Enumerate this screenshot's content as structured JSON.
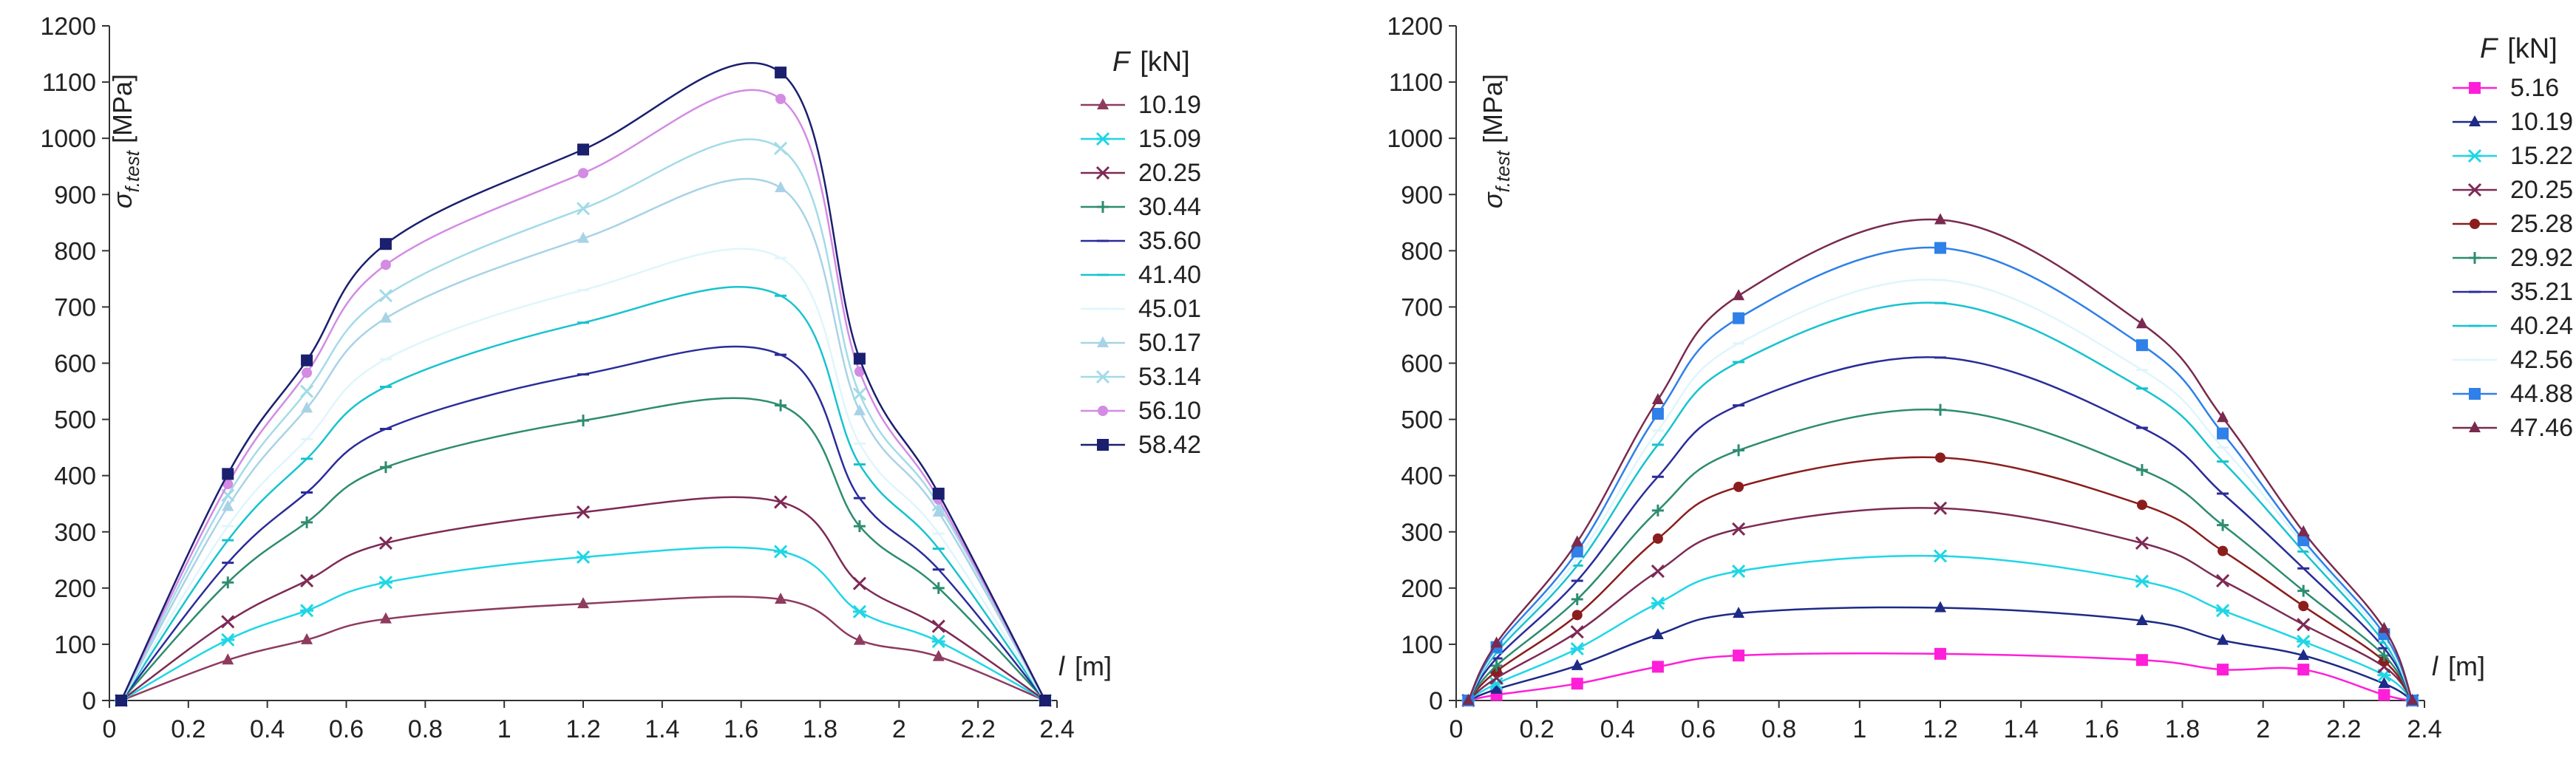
{
  "chart_data": [
    {
      "type": "line",
      "xlabel": "l",
      "xunit": "[m]",
      "ylabel_main": "σ",
      "ylabel_sub": "f.test",
      "yunit": "[MPa]",
      "legend_title": "F",
      "legend_unit": "[kN]",
      "xlim": [
        0,
        2.4
      ],
      "ylim": [
        0,
        1200
      ],
      "xticks": [
        "0",
        "0.2",
        "0.4",
        "0.6",
        "0.8",
        "1",
        "1.2",
        "1.4",
        "1.6",
        "1.8",
        "2",
        "2.2",
        "2.4"
      ],
      "yticks": [
        "0",
        "100",
        "200",
        "300",
        "400",
        "500",
        "600",
        "700",
        "800",
        "900",
        "1000",
        "1100",
        "1200"
      ],
      "x": [
        0.03,
        0.3,
        0.5,
        0.7,
        1.2,
        1.7,
        1.9,
        2.1,
        2.37
      ],
      "series": [
        {
          "name": "10.19",
          "color": "#8e3b5e",
          "marker": "triangle",
          "values": [
            0,
            72,
            108,
            145,
            172,
            180,
            107,
            78,
            0
          ]
        },
        {
          "name": "15.09",
          "color": "#1fd6e6",
          "marker": "asterisk",
          "values": [
            0,
            108,
            160,
            210,
            255,
            265,
            158,
            105,
            0
          ]
        },
        {
          "name": "20.25",
          "color": "#7d2a55",
          "marker": "x",
          "values": [
            0,
            140,
            213,
            280,
            335,
            353,
            208,
            132,
            0
          ]
        },
        {
          "name": "30.44",
          "color": "#2e8c70",
          "marker": "plus",
          "values": [
            0,
            210,
            317,
            415,
            498,
            525,
            310,
            200,
            0
          ]
        },
        {
          "name": "35.60",
          "color": "#2a2c9a",
          "marker": "dash",
          "values": [
            0,
            245,
            370,
            483,
            580,
            615,
            360,
            233,
            0
          ]
        },
        {
          "name": "41.40",
          "color": "#17c3cf",
          "marker": "dash",
          "values": [
            0,
            285,
            430,
            558,
            672,
            720,
            420,
            270,
            0
          ]
        },
        {
          "name": "45.01",
          "color": "#dff6fb",
          "marker": "dash",
          "values": [
            0,
            310,
            465,
            607,
            730,
            787,
            457,
            297,
            0
          ]
        },
        {
          "name": "50.17",
          "color": "#a8d3e6",
          "marker": "triangle",
          "values": [
            0,
            345,
            520,
            680,
            822,
            912,
            515,
            335,
            0
          ]
        },
        {
          "name": "53.14",
          "color": "#a3dbe8",
          "marker": "x",
          "values": [
            0,
            365,
            550,
            720,
            875,
            982,
            545,
            348,
            0
          ]
        },
        {
          "name": "56.10",
          "color": "#d38be3",
          "marker": "circle",
          "values": [
            0,
            385,
            583,
            775,
            938,
            1070,
            585,
            358,
            0
          ]
        },
        {
          "name": "58.42",
          "color": "#1a1f6e",
          "marker": "square",
          "values": [
            0,
            403,
            605,
            812,
            980,
            1117,
            608,
            368,
            0
          ]
        }
      ]
    },
    {
      "type": "line",
      "xlabel": "l",
      "xunit": "[m]",
      "ylabel_main": "σ",
      "ylabel_sub": "f.test",
      "yunit": "[MPa]",
      "legend_title": "F",
      "legend_unit": "[kN]",
      "xlim": [
        0,
        2.4
      ],
      "ylim": [
        0,
        1200
      ],
      "xticks": [
        "0",
        "0.2",
        "0.4",
        "0.6",
        "0.8",
        "1",
        "1.2",
        "1.4",
        "1.6",
        "1.8",
        "2",
        "2.2",
        "2.4"
      ],
      "yticks": [
        "0",
        "100",
        "200",
        "300",
        "400",
        "500",
        "600",
        "700",
        "800",
        "900",
        "1000",
        "1100",
        "1200"
      ],
      "x": [
        0.03,
        0.1,
        0.3,
        0.5,
        0.7,
        1.2,
        1.7,
        1.9,
        2.1,
        2.3,
        2.37
      ],
      "series": [
        {
          "name": "5.16",
          "color": "#ff1fd8",
          "marker": "square",
          "values": [
            0,
            10,
            30,
            60,
            80,
            83,
            72,
            55,
            55,
            10,
            0
          ]
        },
        {
          "name": "10.19",
          "color": "#1d2a86",
          "marker": "triangle",
          "values": [
            0,
            20,
            62,
            117,
            155,
            165,
            142,
            107,
            80,
            30,
            0
          ]
        },
        {
          "name": "15.22",
          "color": "#1fd6e6",
          "marker": "asterisk",
          "values": [
            0,
            30,
            92,
            173,
            230,
            257,
            212,
            160,
            105,
            45,
            0
          ]
        },
        {
          "name": "20.25",
          "color": "#7d2a55",
          "marker": "x",
          "values": [
            0,
            40,
            122,
            230,
            305,
            342,
            280,
            213,
            135,
            60,
            0
          ]
        },
        {
          "name": "25.28",
          "color": "#8b1d1d",
          "marker": "circle",
          "values": [
            0,
            52,
            152,
            288,
            380,
            432,
            348,
            266,
            168,
            70,
            0
          ]
        },
        {
          "name": "29.92",
          "color": "#2e8c70",
          "marker": "plus",
          "values": [
            0,
            62,
            180,
            338,
            445,
            517,
            410,
            312,
            195,
            80,
            0
          ]
        },
        {
          "name": "35.21",
          "color": "#2a2c9a",
          "marker": "dash",
          "values": [
            0,
            75,
            213,
            398,
            525,
            610,
            485,
            368,
            235,
            93,
            0
          ]
        },
        {
          "name": "40.24",
          "color": "#17c3cf",
          "marker": "dash",
          "values": [
            0,
            85,
            240,
            455,
            602,
            707,
            555,
            425,
            265,
            103,
            0
          ]
        },
        {
          "name": "42.56",
          "color": "#dff6fb",
          "marker": "dash",
          "values": [
            0,
            90,
            252,
            480,
            635,
            748,
            588,
            450,
            278,
            110,
            0
          ]
        },
        {
          "name": "44.88",
          "color": "#2f80e8",
          "marker": "square",
          "values": [
            0,
            95,
            265,
            510,
            680,
            805,
            632,
            475,
            285,
            118,
            0
          ]
        },
        {
          "name": "47.46",
          "color": "#7a2a4e",
          "marker": "triangle",
          "values": [
            0,
            102,
            282,
            535,
            720,
            855,
            670,
            503,
            300,
            128,
            0
          ]
        }
      ]
    }
  ]
}
